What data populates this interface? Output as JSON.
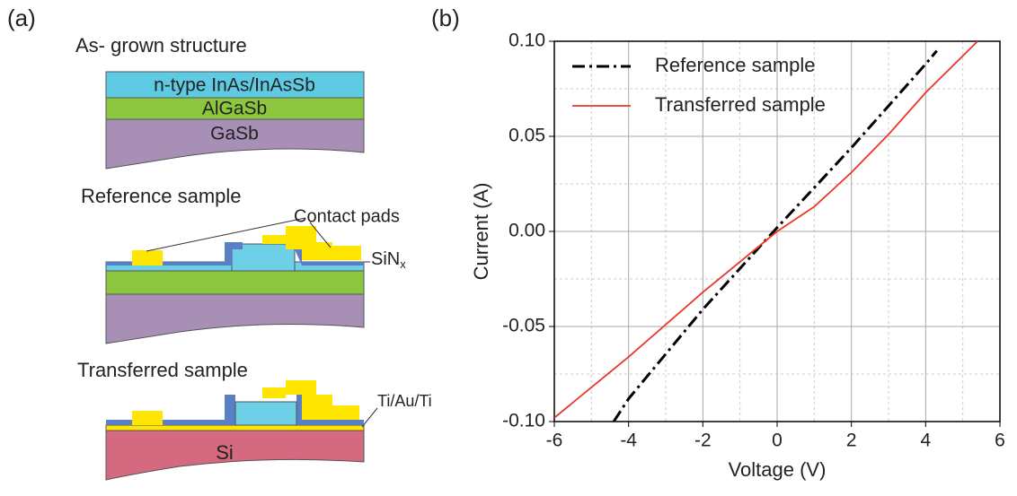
{
  "panel_a": {
    "label": "(a)",
    "as_grown": {
      "title": "As- grown structure",
      "layers": [
        "n-type InAs/InAsSb",
        "AlGaSb",
        "GaSb"
      ]
    },
    "reference": {
      "title": "Reference sample",
      "contact_pads": "Contact pads",
      "sinx": {
        "base": "SiN",
        "sub": "x"
      }
    },
    "transferred": {
      "title": "Transferred sample",
      "metal": "Ti/Au/Ti",
      "substrate": "Si"
    }
  },
  "chart_data": {
    "type": "line",
    "panel_label": "(b)",
    "xlabel": "Voltage (V)",
    "ylabel": "Current (A)",
    "xlim": [
      -6,
      6
    ],
    "ylim": [
      -0.1,
      0.1
    ],
    "xticks": [
      -6,
      -4,
      -2,
      0,
      2,
      4,
      6
    ],
    "yticks": [
      {
        "value": 0.1,
        "label": "0.10"
      },
      {
        "value": 0.05,
        "label": "0.05"
      },
      {
        "value": 0,
        "label": "0.00"
      },
      {
        "value": -0.05,
        "label": "-0.05"
      },
      {
        "value": -0.1,
        "label": "-0.10"
      }
    ],
    "xminorticks": [
      -5,
      -3,
      -1,
      1,
      3,
      5
    ],
    "yminorticks": [
      -0.075,
      -0.025,
      0.025,
      0.075
    ],
    "grid": true,
    "legend": "upper left",
    "series": [
      {
        "name": "Reference sample",
        "color": "#000000",
        "linestyle": "dashdot",
        "x": [
          -4.4,
          -4,
          -2,
          0,
          2,
          4,
          4.3
        ],
        "values": [
          -0.1,
          -0.088,
          -0.041,
          0.002,
          0.044,
          0.088,
          0.095
        ]
      },
      {
        "name": "Transferred sample",
        "color": "#e8372a",
        "linestyle": "solid",
        "x": [
          -6,
          -4,
          -2,
          0,
          1,
          2,
          3,
          4,
          5.4
        ],
        "values": [
          -0.098,
          -0.066,
          -0.032,
          0,
          0.013,
          0.031,
          0.051,
          0.073,
          0.1
        ]
      }
    ]
  }
}
